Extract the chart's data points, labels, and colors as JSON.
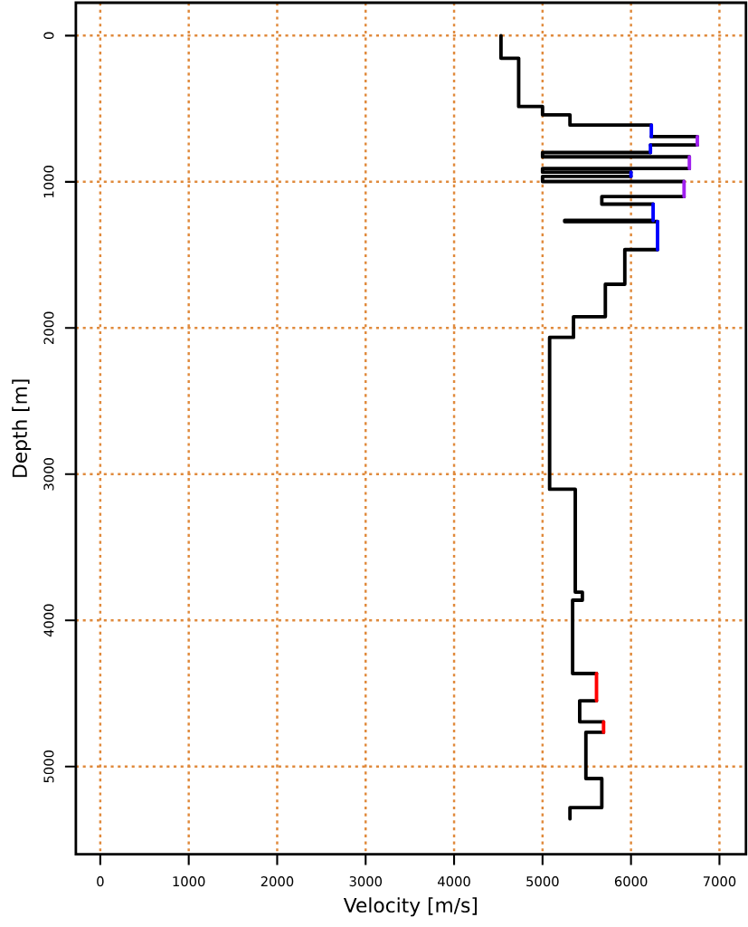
{
  "chart_data": {
    "type": "line",
    "xlabel": "Velocity [m/s]",
    "ylabel": "Depth [m]",
    "xlim": [
      -276,
      7300
    ],
    "ylim": [
      5600,
      -225
    ],
    "xticks": [
      0,
      1000,
      2000,
      3000,
      4000,
      5000,
      6000,
      7000
    ],
    "yticks": [
      0,
      1000,
      2000,
      3000,
      4000,
      5000
    ],
    "grid": true,
    "marker": "none",
    "series": [
      {
        "color": "#000000",
        "x": [
          4530,
          4530,
          4730,
          4730,
          5000,
          5000,
          5310,
          5310,
          6230,
          null,
          6230,
          6750,
          null,
          6750,
          6220,
          null,
          6220,
          5000,
          5000,
          6660,
          null,
          6660,
          5000,
          5000,
          6000,
          null,
          6000,
          5000,
          5000,
          6600,
          null,
          6600,
          5670,
          5670,
          6250,
          null,
          6250,
          5250,
          5250,
          6300,
          null,
          6300,
          5930,
          5930,
          5710,
          5710,
          5350,
          5350,
          5080,
          5080,
          5370,
          5370,
          5450,
          5450,
          5340,
          5340,
          5610,
          null,
          5610,
          5420,
          5420,
          5690,
          null,
          5690,
          5490,
          5490,
          5670,
          5670,
          5310,
          5310
        ],
        "values": [
          0,
          155,
          155,
          485,
          485,
          542,
          542,
          612,
          612,
          null,
          691,
          691,
          null,
          748,
          748,
          null,
          800,
          800,
          829,
          829,
          null,
          909,
          909,
          934,
          934,
          null,
          963,
          963,
          998,
          998,
          null,
          1101,
          1101,
          1153,
          1153,
          null,
          1264,
          1264,
          1272,
          1272,
          null,
          1464,
          1464,
          1701,
          1701,
          1923,
          1923,
          2064,
          2064,
          3103,
          3103,
          3807,
          3807,
          3862,
          3862,
          4364,
          4364,
          null,
          4550,
          4550,
          4694,
          4694,
          null,
          4766,
          4766,
          5082,
          5082,
          5281,
          5281,
          5358
        ]
      },
      {
        "color": "#0000ff",
        "x": [
          6230,
          6230,
          null,
          6220,
          6220,
          null,
          6000,
          6000,
          null,
          6250,
          6250,
          null,
          6300,
          6300
        ],
        "values": [
          612,
          691,
          null,
          748,
          800,
          null,
          934,
          963,
          null,
          1153,
          1264,
          null,
          1272,
          1464
        ]
      },
      {
        "color": "#a020f0",
        "x": [
          6750,
          6750,
          null,
          6660,
          6660,
          null,
          6600,
          6600
        ],
        "values": [
          691,
          748,
          null,
          829,
          909,
          null,
          998,
          1101
        ]
      },
      {
        "color": "#ff0000",
        "x": [
          5610,
          5610,
          null,
          5690,
          5690
        ],
        "values": [
          4364,
          4550,
          null,
          4694,
          4766
        ]
      }
    ]
  }
}
